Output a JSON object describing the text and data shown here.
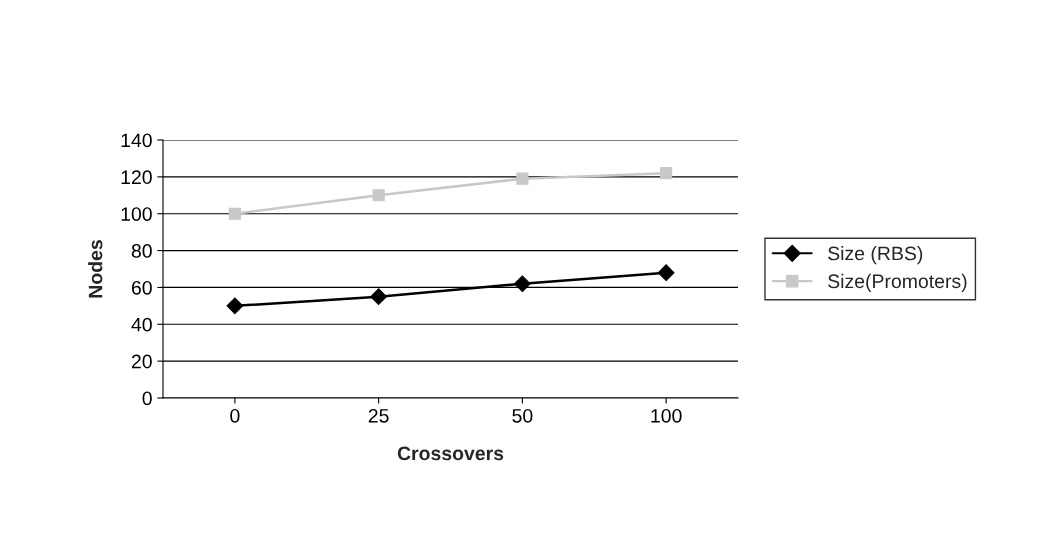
{
  "chart_data": {
    "type": "line",
    "xlabel": "Crossovers",
    "ylabel": "Nodes",
    "categories": [
      "0",
      "25",
      "50",
      "100"
    ],
    "series": [
      {
        "name": "Size (RBS)",
        "color": "#000000",
        "values": [
          50,
          55,
          62,
          68
        ],
        "marker": "diamond"
      },
      {
        "name": "Size(Promoters)",
        "color": "#c8c8c8",
        "values": [
          100,
          110,
          119,
          122
        ],
        "marker": "square"
      }
    ],
    "ylim": [
      0,
      140
    ],
    "yticks": [
      0,
      20,
      40,
      60,
      80,
      100,
      120,
      140
    ],
    "grid": "y",
    "legend": "right",
    "line_style": "solid"
  }
}
